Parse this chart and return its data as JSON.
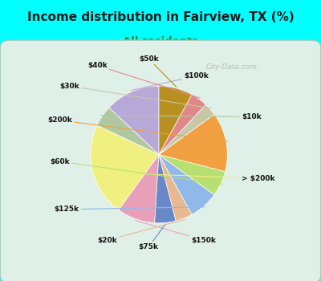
{
  "title": "Income distribution in Fairview, TX (%)",
  "subtitle": "All residents",
  "watermark": "© City-Data.com",
  "bg_outer": "#00FFFF",
  "bg_inner_color": "#d4ede4",
  "title_fontsize": 11,
  "title_color": "#1a1a1a",
  "subtitle_fontsize": 9.5,
  "subtitle_color": "#2e8b2e",
  "labels": [
    "$100k",
    "$10k",
    "> $200k",
    "$150k",
    "$75k",
    "$20k",
    "$125k",
    "$60k",
    "$200k",
    "$30k",
    "$40k",
    "$50k"
  ],
  "values": [
    13,
    5,
    22,
    9,
    5,
    4,
    7,
    6,
    14,
    3,
    4,
    8
  ],
  "colors": [
    "#b8a8d8",
    "#b0c8a0",
    "#f0f080",
    "#e8a0b8",
    "#6888c8",
    "#e8b890",
    "#90b8e8",
    "#b8e070",
    "#f0a040",
    "#c8c8a8",
    "#e08888",
    "#b89020"
  ],
  "line_colors": [
    "#b8a8d8",
    "#b0c8a0",
    "#f0f080",
    "#e8a0b8",
    "#6888c8",
    "#e8b890",
    "#90b8e8",
    "#b8e070",
    "#f0a040",
    "#c8c8a8",
    "#e08888",
    "#b89020"
  ],
  "startangle": 90
}
